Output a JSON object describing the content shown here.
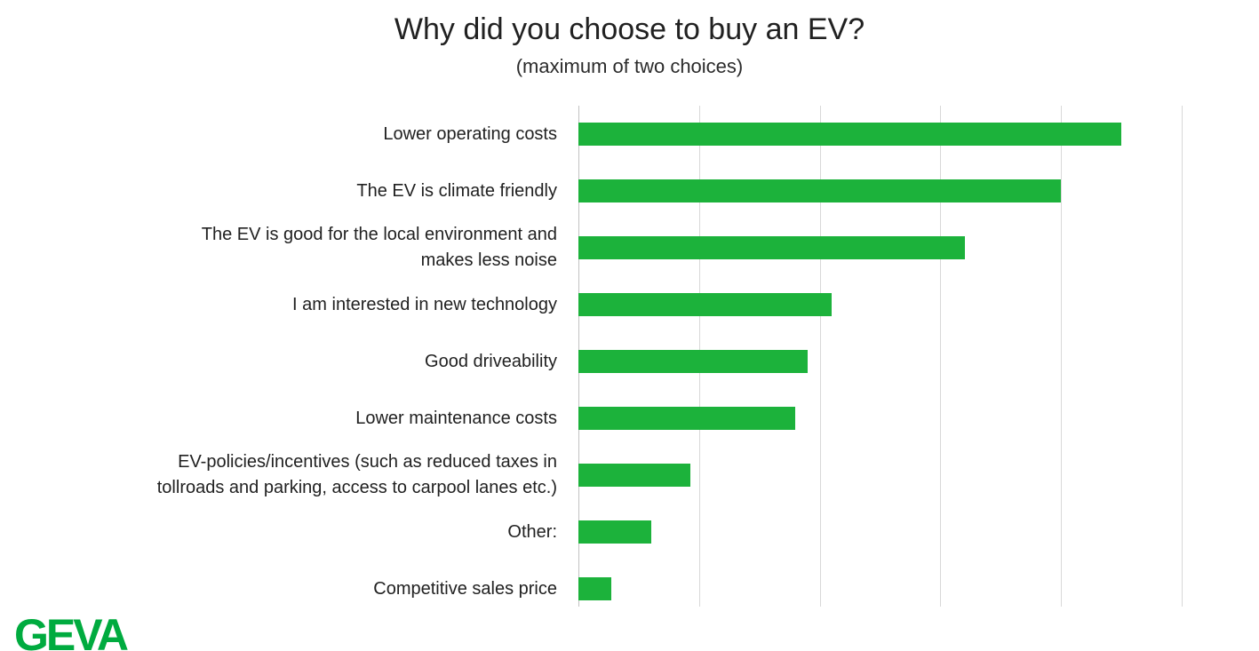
{
  "header": {
    "title": "Why did you choose to buy an EV?",
    "subtitle": "(maximum of two choices)"
  },
  "logo": {
    "text": "GEVA"
  },
  "colors": {
    "bar": "#1cb23b",
    "gridline": "#d8d8d8",
    "axis_line": "#c2c2c2",
    "logo": "#00ab3f",
    "text": "#212121"
  },
  "chart_data": {
    "type": "bar",
    "orientation": "horizontal",
    "title": "Why did you choose to buy an EV?",
    "subtitle": "(maximum of two choices)",
    "categories": [
      "Lower operating costs",
      "The EV is climate friendly",
      "The EV is good for the local environment and\nmakes less noise",
      "I am interested in new technology",
      "Good driveability",
      "Lower maintenance costs",
      "EV-policies/incentives (such as reduced taxes in\ntollroads and parking, access to carpool lanes etc.)",
      "Other:",
      "Competitive sales price"
    ],
    "values": [
      45,
      40,
      32,
      21,
      19,
      18,
      9.3,
      6,
      2.7
    ],
    "xlabel": "",
    "ylabel": "",
    "xlim": [
      0,
      50
    ],
    "gridlines_at": [
      0,
      10,
      20,
      30,
      40,
      50
    ],
    "axis_tick_labels_visible": false,
    "legend": "none",
    "bar_color": "#1cb23b"
  }
}
